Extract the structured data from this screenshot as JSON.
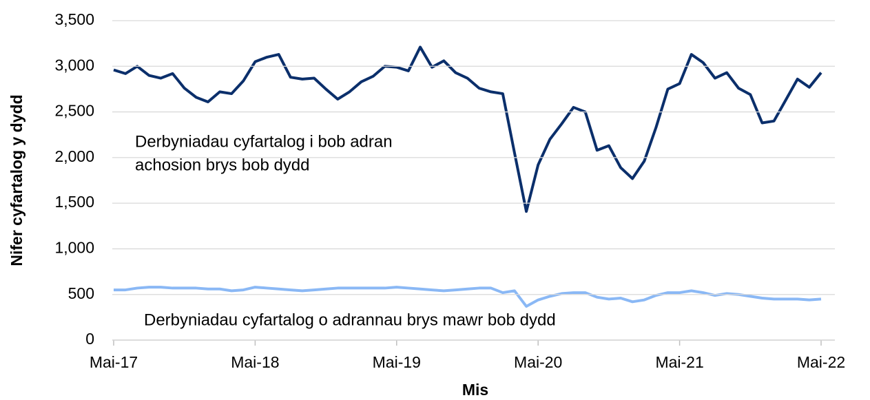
{
  "chart_data": {
    "type": "line",
    "xlabel": "Mis",
    "ylabel": "Nifer cyfartalog y dydd",
    "categories": [
      "Mai-17",
      null,
      null,
      null,
      null,
      null,
      null,
      null,
      null,
      null,
      null,
      null,
      "Mai-18",
      null,
      null,
      null,
      null,
      null,
      null,
      null,
      null,
      null,
      null,
      null,
      "Mai-19",
      null,
      null,
      null,
      null,
      null,
      null,
      null,
      null,
      null,
      null,
      null,
      "Mai-20",
      null,
      null,
      null,
      null,
      null,
      null,
      null,
      null,
      null,
      null,
      null,
      "Mai-21",
      null,
      null,
      null,
      null,
      null,
      null,
      null,
      null,
      null,
      null,
      null,
      "Mai-22"
    ],
    "series": [
      {
        "color": "#0b2f6b",
        "values": [
          2960,
          2920,
          3000,
          2900,
          2870,
          2920,
          2760,
          2660,
          2610,
          2720,
          2700,
          2840,
          3050,
          3100,
          3130,
          2880,
          2860,
          2870,
          2750,
          2640,
          2720,
          2830,
          2890,
          3000,
          2990,
          2950,
          3210,
          2990,
          3060,
          2930,
          2870,
          2760,
          2720,
          2700,
          2050,
          1410,
          1920,
          2200,
          2370,
          2550,
          2500,
          2080,
          2130,
          1890,
          1770,
          1960,
          2330,
          2750,
          2810,
          3130,
          3040,
          2870,
          2930,
          2760,
          2690,
          2380,
          2400,
          2630,
          2860,
          2770,
          2930
        ]
      },
      {
        "color": "#8ab8f5",
        "values": [
          550,
          550,
          570,
          580,
          580,
          570,
          570,
          570,
          560,
          560,
          540,
          550,
          580,
          570,
          560,
          550,
          540,
          550,
          560,
          570,
          570,
          570,
          570,
          570,
          580,
          570,
          560,
          550,
          540,
          550,
          560,
          570,
          570,
          520,
          540,
          370,
          440,
          480,
          510,
          520,
          520,
          470,
          450,
          460,
          420,
          440,
          490,
          520,
          520,
          540,
          520,
          490,
          510,
          500,
          480,
          460,
          450,
          450,
          450,
          440,
          450
        ]
      }
    ],
    "annotations": [
      "Derbyniadau cyfartalog i bob adran",
      "achosion brys bob dydd",
      "Derbyniadau cyfartalog o adrannau brys mawr bob dydd"
    ],
    "ylim": [
      0,
      3500
    ],
    "yticks": [
      0,
      500,
      {
        "value": 1000,
        "label": "1,000"
      },
      {
        "value": 1500,
        "label": "1,500"
      },
      {
        "value": 2000,
        "label": "2,000"
      },
      {
        "value": 2500,
        "label": "2,500"
      },
      {
        "value": 3000,
        "label": "3,000"
      },
      {
        "value": 3500,
        "label": "3,500"
      }
    ],
    "grid": true
  }
}
